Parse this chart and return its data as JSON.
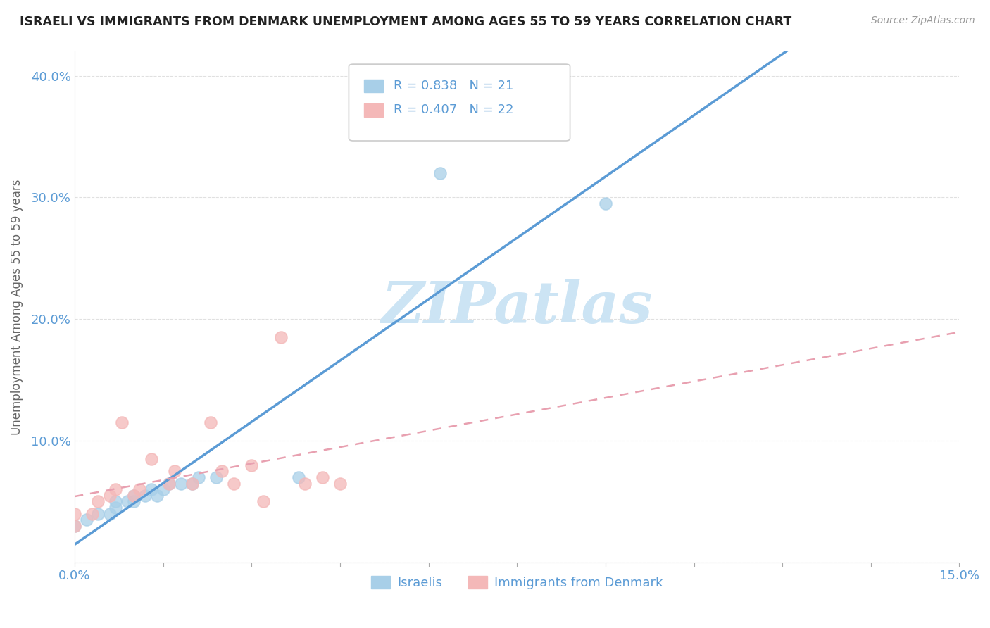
{
  "title": "ISRAELI VS IMMIGRANTS FROM DENMARK UNEMPLOYMENT AMONG AGES 55 TO 59 YEARS CORRELATION CHART",
  "source": "Source: ZipAtlas.com",
  "ylabel": "Unemployment Among Ages 55 to 59 years",
  "xlim": [
    0.0,
    0.15
  ],
  "ylim": [
    0.0,
    0.42
  ],
  "xticks": [
    0.0,
    0.015,
    0.03,
    0.045,
    0.06,
    0.075,
    0.09,
    0.105,
    0.12,
    0.135,
    0.15
  ],
  "yticks": [
    0.0,
    0.1,
    0.2,
    0.3,
    0.4
  ],
  "watermark": "ZIPatlas",
  "legend_box": {
    "R1": "0.838",
    "N1": "21",
    "R2": "0.407",
    "N2": "22"
  },
  "israelis_x": [
    0.0,
    0.002,
    0.004,
    0.006,
    0.007,
    0.007,
    0.009,
    0.01,
    0.01,
    0.012,
    0.013,
    0.014,
    0.015,
    0.016,
    0.018,
    0.02,
    0.021,
    0.024,
    0.038,
    0.062,
    0.09
  ],
  "israelis_y": [
    0.03,
    0.035,
    0.04,
    0.04,
    0.045,
    0.05,
    0.05,
    0.05,
    0.055,
    0.055,
    0.06,
    0.055,
    0.06,
    0.065,
    0.065,
    0.065,
    0.07,
    0.07,
    0.07,
    0.32,
    0.295
  ],
  "denmark_x": [
    0.0,
    0.0,
    0.003,
    0.004,
    0.006,
    0.007,
    0.008,
    0.01,
    0.011,
    0.013,
    0.016,
    0.017,
    0.02,
    0.023,
    0.025,
    0.027,
    0.03,
    0.032,
    0.035,
    0.039,
    0.042,
    0.045
  ],
  "denmark_y": [
    0.03,
    0.04,
    0.04,
    0.05,
    0.055,
    0.06,
    0.115,
    0.055,
    0.06,
    0.085,
    0.065,
    0.075,
    0.065,
    0.115,
    0.075,
    0.065,
    0.08,
    0.05,
    0.185,
    0.065,
    0.07,
    0.065
  ],
  "israeli_color": "#a8cfe8",
  "denmark_color": "#f4b8b8",
  "israeli_line_color": "#5b9bd5",
  "denmark_line_color": "#e8a0b0",
  "bg_color": "#ffffff",
  "grid_color": "#e0e0e0",
  "title_color": "#222222",
  "axis_label_color": "#666666",
  "tick_label_color": "#5b9bd5",
  "watermark_color": "#cce4f4",
  "legend_text_color": "#5b9bd5"
}
